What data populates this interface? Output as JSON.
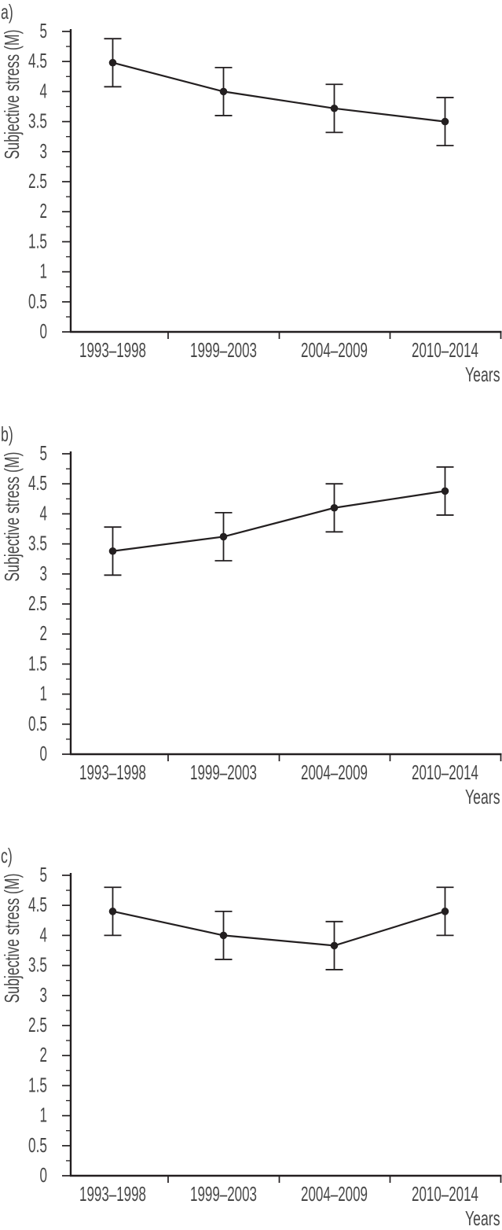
{
  "chart_data": [
    {
      "type": "line",
      "panel_label": "a)",
      "ylabel": "Subjective stress (M)",
      "xlabel": "Years",
      "categories": [
        "1993–1998",
        "1999–2003",
        "2004–2009",
        "2010–2014"
      ],
      "series": [
        {
          "name": "Subjective stress mean",
          "values": [
            4.48,
            4.0,
            3.72,
            3.5
          ],
          "errors": [
            0.4,
            0.4,
            0.4,
            0.4
          ]
        }
      ],
      "ylim": [
        0,
        5
      ],
      "ytick_step": 0.5,
      "yminor_step": 0.25,
      "ytick_labels": [
        "0",
        "0.5",
        "1",
        "1.5",
        "2",
        "2.5",
        "3",
        "3.5",
        "4",
        "4.5",
        "5"
      ],
      "grid": false,
      "legend": false
    },
    {
      "type": "line",
      "panel_label": "b)",
      "ylabel": "Subjective stress (M)",
      "xlabel": "Years",
      "categories": [
        "1993–1998",
        "1999–2003",
        "2004–2009",
        "2010–2014"
      ],
      "series": [
        {
          "name": "Subjective stress mean",
          "values": [
            3.38,
            3.62,
            4.1,
            4.38
          ],
          "errors": [
            0.4,
            0.4,
            0.4,
            0.4
          ]
        }
      ],
      "ylim": [
        0,
        5
      ],
      "ytick_step": 0.5,
      "yminor_step": 0.25,
      "ytick_labels": [
        "0",
        "0.5",
        "1",
        "1.5",
        "2",
        "2.5",
        "3",
        "3.5",
        "4",
        "4.5",
        "5"
      ],
      "grid": false,
      "legend": false
    },
    {
      "type": "line",
      "panel_label": "c)",
      "ylabel": "Subjective stress (M)",
      "xlabel": "Years",
      "categories": [
        "1993–1998",
        "1999–2003",
        "2004–2009",
        "2010–2014"
      ],
      "series": [
        {
          "name": "Subjective stress mean",
          "values": [
            4.4,
            4.0,
            3.83,
            4.4
          ],
          "errors": [
            0.4,
            0.4,
            0.4,
            0.4
          ]
        }
      ],
      "ylim": [
        0,
        5
      ],
      "ytick_step": 0.5,
      "yminor_step": 0.25,
      "ytick_labels": [
        "0",
        "0.5",
        "1",
        "1.5",
        "2",
        "2.5",
        "3",
        "3.5",
        "4",
        "4.5",
        "5"
      ],
      "grid": false,
      "legend": false
    }
  ],
  "colors": {
    "line": "#231f20",
    "marker": "#231f20",
    "axis": "#231f20",
    "error_bar": "#231f20",
    "text": "#474747"
  }
}
